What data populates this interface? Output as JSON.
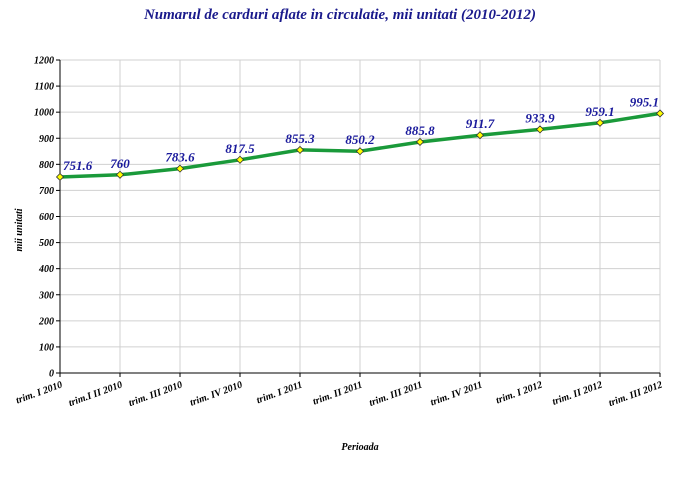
{
  "chart_data": {
    "type": "line",
    "title": "Numarul de carduri aflate in circulatie, mii unitati (2010-2012)",
    "xlabel": "Perioada",
    "ylabel": "mii unitati",
    "ylim": [
      0,
      1200
    ],
    "yticks": [
      0,
      100,
      200,
      300,
      400,
      500,
      600,
      700,
      800,
      900,
      1000,
      1100,
      1200
    ],
    "categories": [
      "trim. I 2010",
      "trim.I II 2010",
      "trim. III 2010",
      "trim. IV 2010",
      "trim. I 2011",
      "trim. II 2011",
      "trim. III 2011",
      "trim. IV 2011",
      "trim. I 2012",
      "trim. II 2012",
      "trim. III 2012"
    ],
    "values": [
      751.6,
      760,
      783.6,
      817.5,
      855.3,
      850.2,
      885.8,
      911.7,
      933.9,
      959.1,
      995.1
    ],
    "data_labels": [
      "751.6",
      "760",
      "783.6",
      "817.5",
      "855.3",
      "850.2",
      "885.8",
      "911.7",
      "933.9",
      "959.1",
      "995.1"
    ],
    "grid": true,
    "legend": "none",
    "colors": {
      "line": "#1a9a3a",
      "marker": "#ffff00",
      "label": "#1a1a9c",
      "title": "#1a1a8c"
    }
  }
}
